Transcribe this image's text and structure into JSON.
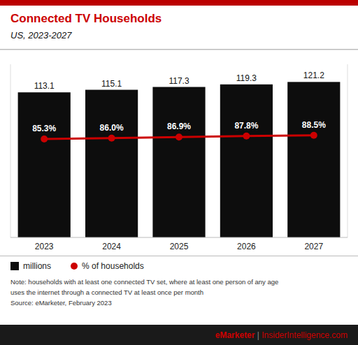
{
  "chart_data": {
    "type": "bar",
    "title": "Connected TV Households",
    "subtitle": "US, 2023-2027",
    "categories": [
      "2023",
      "2024",
      "2025",
      "2026",
      "2027"
    ],
    "series": [
      {
        "name": "millions",
        "type": "bar",
        "color": "#0d0d0d",
        "values": [
          113.1,
          115.1,
          117.3,
          119.3,
          121.2
        ]
      },
      {
        "name": "% of households",
        "type": "line",
        "axis": "y2",
        "color": "#cc0000",
        "marker": "circle",
        "values": [
          85.3,
          86.0,
          86.9,
          87.8,
          88.5
        ],
        "value_labels": [
          "85.3%",
          "86.0%",
          "86.9%",
          "87.8%",
          "88.5%"
        ]
      }
    ],
    "ylim": [
      0,
      135
    ],
    "y2lim": [
      0,
      150
    ],
    "tick_labels": "x",
    "grid": false,
    "legend": "bottom",
    "data_labels": true,
    "annotations": [
      "Note: households with at least one connected TV set, where at least one person of any age",
      "uses the internet through a connected TV at least once per month",
      "Source: eMarketer, February 2023",
      "eMarketer",
      " | ",
      "InsiderIntelligence.com"
    ]
  }
}
